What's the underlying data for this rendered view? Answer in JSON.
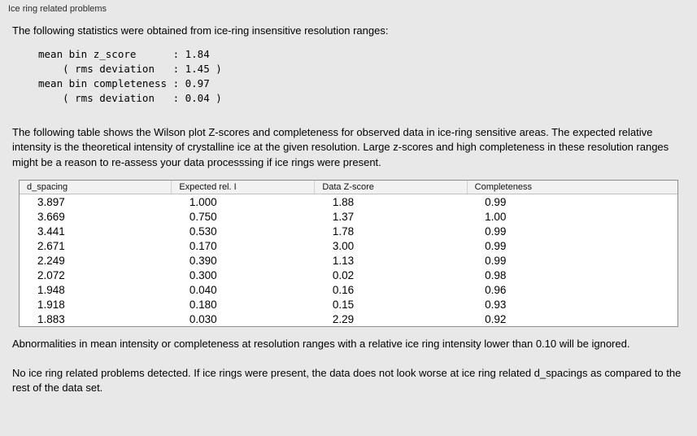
{
  "panel": {
    "title": "Ice ring related problems"
  },
  "intro": "The following statistics were obtained from ice-ring insensitive resolution ranges:",
  "stats_block": "mean bin z_score      : 1.84\n    ( rms deviation   : 1.45 )\nmean bin completeness : 0.97\n    ( rms deviation   : 0.04 )",
  "description": "The following table shows the Wilson plot Z-scores and completeness for observed data in ice-ring sensitive areas. The expected relative intensity is the theoretical intensity of crystalline ice at the given resolution. Large z-scores and high completeness in these resolution ranges might be a reason to re-assess your data processsing if ice rings were present.",
  "table": {
    "columns": [
      "d_spacing",
      "Expected rel. I",
      "Data Z-score",
      "Completeness"
    ],
    "rows": [
      [
        "3.897",
        "1.000",
        "1.88",
        "0.99"
      ],
      [
        "3.669",
        "0.750",
        "1.37",
        "1.00"
      ],
      [
        "3.441",
        "0.530",
        "1.78",
        "0.99"
      ],
      [
        "2.671",
        "0.170",
        "3.00",
        "0.99"
      ],
      [
        "2.249",
        "0.390",
        "1.13",
        "0.99"
      ],
      [
        "2.072",
        "0.300",
        "0.02",
        "0.98"
      ],
      [
        "1.948",
        "0.040",
        "0.16",
        "0.96"
      ],
      [
        "1.918",
        "0.180",
        "0.15",
        "0.93"
      ],
      [
        "1.883",
        "0.030",
        "2.29",
        "0.92"
      ]
    ]
  },
  "note_ignore": "Abnormalities in mean intensity or completeness at resolution ranges with a relative ice ring intensity lower than 0.10 will be ignored.",
  "conclusion": "No ice ring related problems detected. If ice rings were present, the data does not look worse at ice ring related d_spacings as compared to the rest of the data set."
}
